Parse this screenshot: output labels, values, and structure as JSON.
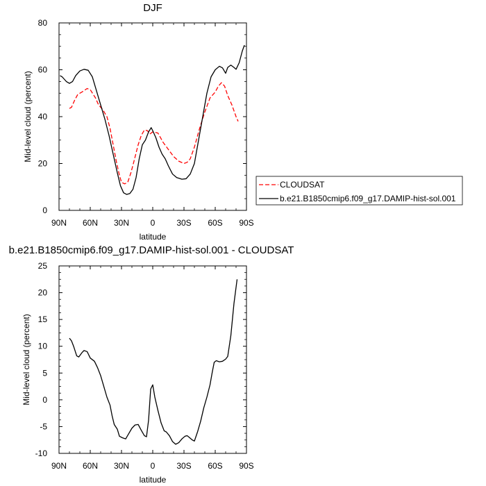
{
  "chart_data": [
    {
      "type": "line",
      "title": "DJF",
      "xlabel": "latitude",
      "ylabel": "Mid-level cloud (percent)",
      "xlim": [
        90,
        -90
      ],
      "ylim": [
        0,
        80
      ],
      "x_ticks": [
        90,
        60,
        30,
        0,
        -30,
        -60,
        -90
      ],
      "x_tick_labels": [
        "90N",
        "60N",
        "30N",
        "0",
        "30S",
        "60S",
        "90S"
      ],
      "y_ticks": [
        0,
        20,
        40,
        60,
        80
      ],
      "y_tick_labels": [
        "0",
        "20",
        "40",
        "60",
        "80"
      ],
      "grid": false,
      "legend_position": "right",
      "series": [
        {
          "name": "CLOUDSAT",
          "color": "#ff0000",
          "dash": "dashed",
          "points": [
            [
              80,
              43.5
            ],
            [
              78,
              44
            ],
            [
              75,
              47
            ],
            [
              72,
              49.5
            ],
            [
              68,
              50.5
            ],
            [
              63,
              52
            ],
            [
              60,
              51.5
            ],
            [
              55,
              48
            ],
            [
              52,
              45
            ],
            [
              48,
              43
            ],
            [
              44,
              40
            ],
            [
              41,
              35
            ],
            [
              38,
              28
            ],
            [
              35,
              21
            ],
            [
              32,
              15
            ],
            [
              30,
              12
            ],
            [
              27,
              11.3
            ],
            [
              24,
              12
            ],
            [
              21,
              16
            ],
            [
              18,
              21
            ],
            [
              14,
              28
            ],
            [
              11,
              32
            ],
            [
              8,
              34.3
            ],
            [
              5,
              34
            ],
            [
              3,
              32.5
            ],
            [
              0,
              33.5
            ],
            [
              -5,
              33
            ],
            [
              -10,
              29
            ],
            [
              -15,
              26
            ],
            [
              -20,
              23
            ],
            [
              -25,
              21
            ],
            [
              -30,
              20
            ],
            [
              -33,
              20.5
            ],
            [
              -36,
              22
            ],
            [
              -40,
              27
            ],
            [
              -45,
              35
            ],
            [
              -50,
              42
            ],
            [
              -55,
              48
            ],
            [
              -60,
              50.5
            ],
            [
              -63,
              53
            ],
            [
              -66,
              54.5
            ],
            [
              -69,
              53
            ],
            [
              -72,
              49
            ],
            [
              -76,
              45
            ],
            [
              -80,
              40
            ],
            [
              -82,
              38
            ]
          ]
        },
        {
          "name": "b.e21.B1850cmip6.f09_g17.DAMIP-hist-sol.001",
          "color": "#000000",
          "dash": "solid",
          "points": [
            [
              89,
              57.5
            ],
            [
              87,
              57
            ],
            [
              83,
              55
            ],
            [
              80,
              54.2
            ],
            [
              77,
              55
            ],
            [
              74,
              57.5
            ],
            [
              70,
              59.5
            ],
            [
              66,
              60.2
            ],
            [
              62,
              59.8
            ],
            [
              58,
              57
            ],
            [
              54,
              51
            ],
            [
              50,
              45
            ],
            [
              46,
              39
            ],
            [
              42,
              32
            ],
            [
              38,
              24
            ],
            [
              34,
              16
            ],
            [
              31,
              10.5
            ],
            [
              28,
              7.5
            ],
            [
              25,
              6.8
            ],
            [
              22,
              7.2
            ],
            [
              19,
              9
            ],
            [
              16,
              14
            ],
            [
              13,
              22
            ],
            [
              10,
              28
            ],
            [
              7,
              30
            ],
            [
              4,
              33.5
            ],
            [
              1.5,
              35.3
            ],
            [
              0,
              34
            ],
            [
              -3,
              31
            ],
            [
              -6,
              27
            ],
            [
              -9,
              24
            ],
            [
              -12,
              22
            ],
            [
              -15,
              19
            ],
            [
              -19,
              15.5
            ],
            [
              -23,
              14
            ],
            [
              -28,
              13.3
            ],
            [
              -32,
              13.5
            ],
            [
              -36,
              15.5
            ],
            [
              -40,
              20
            ],
            [
              -44,
              30
            ],
            [
              -48,
              40
            ],
            [
              -52,
              50
            ],
            [
              -56,
              57
            ],
            [
              -60,
              60
            ],
            [
              -64,
              61.5
            ],
            [
              -67,
              60.8
            ],
            [
              -70,
              58.5
            ],
            [
              -72,
              61
            ],
            [
              -75,
              62
            ],
            [
              -78,
              61
            ],
            [
              -80,
              60.2
            ],
            [
              -83,
              63
            ],
            [
              -86,
              68
            ],
            [
              -88,
              70.5
            ]
          ]
        }
      ]
    },
    {
      "type": "line",
      "title": "b.e21.B1850cmip6.f09_g17.DAMIP-hist-sol.001 - CLOUDSAT",
      "xlabel": "latitude",
      "ylabel": "Mid-level cloud (percent)",
      "xlim": [
        90,
        -90
      ],
      "ylim": [
        -10,
        25
      ],
      "x_ticks": [
        90,
        60,
        30,
        0,
        -30,
        -60,
        -90
      ],
      "x_tick_labels": [
        "90N",
        "60N",
        "30N",
        "0",
        "30S",
        "60S",
        "90S"
      ],
      "y_ticks": [
        -10,
        -5,
        0,
        5,
        10,
        15,
        20,
        25
      ],
      "y_tick_labels": [
        "-10",
        "-5",
        "0",
        "5",
        "10",
        "15",
        "20",
        "25"
      ],
      "grid": false,
      "series": [
        {
          "color": "#000000",
          "dash": "solid",
          "points": [
            [
              80,
              11.5
            ],
            [
              78,
              11
            ],
            [
              76,
              10
            ],
            [
              73,
              8.2
            ],
            [
              71,
              8
            ],
            [
              68,
              8.8
            ],
            [
              66,
              9.2
            ],
            [
              63,
              9
            ],
            [
              60,
              7.8
            ],
            [
              56,
              7.2
            ],
            [
              53,
              6
            ],
            [
              50,
              4.5
            ],
            [
              47,
              2.5
            ],
            [
              44,
              0.5
            ],
            [
              41,
              -1
            ],
            [
              39,
              -3
            ],
            [
              37,
              -4.6
            ],
            [
              34,
              -5.5
            ],
            [
              32,
              -6.8
            ],
            [
              29,
              -7.1
            ],
            [
              26,
              -7.3
            ],
            [
              23,
              -6.3
            ],
            [
              20,
              -5.3
            ],
            [
              17,
              -4.7
            ],
            [
              14,
              -4.6
            ],
            [
              11,
              -5.7
            ],
            [
              8,
              -6.7
            ],
            [
              6,
              -6.9
            ],
            [
              4,
              -3.8
            ],
            [
              2,
              2
            ],
            [
              0,
              2.8
            ],
            [
              -2,
              0.5
            ],
            [
              -5,
              -2
            ],
            [
              -8,
              -4.3
            ],
            [
              -11,
              -5.8
            ],
            [
              -13,
              -6
            ],
            [
              -16,
              -6.7
            ],
            [
              -19,
              -7.8
            ],
            [
              -22,
              -8.3
            ],
            [
              -25,
              -8
            ],
            [
              -28,
              -7.3
            ],
            [
              -31,
              -6.8
            ],
            [
              -33,
              -6.7
            ],
            [
              -35,
              -7
            ],
            [
              -38,
              -7.5
            ],
            [
              -40,
              -7.7
            ],
            [
              -43,
              -6
            ],
            [
              -46,
              -4
            ],
            [
              -49,
              -1.5
            ],
            [
              -52,
              0.5
            ],
            [
              -55,
              2.8
            ],
            [
              -57,
              5
            ],
            [
              -59,
              7
            ],
            [
              -61,
              7.3
            ],
            [
              -64,
              7.1
            ],
            [
              -67,
              7.2
            ],
            [
              -70,
              7.6
            ],
            [
              -72,
              8.1
            ],
            [
              -75,
              12
            ],
            [
              -78,
              18
            ],
            [
              -81,
              22.5
            ]
          ]
        }
      ]
    }
  ]
}
